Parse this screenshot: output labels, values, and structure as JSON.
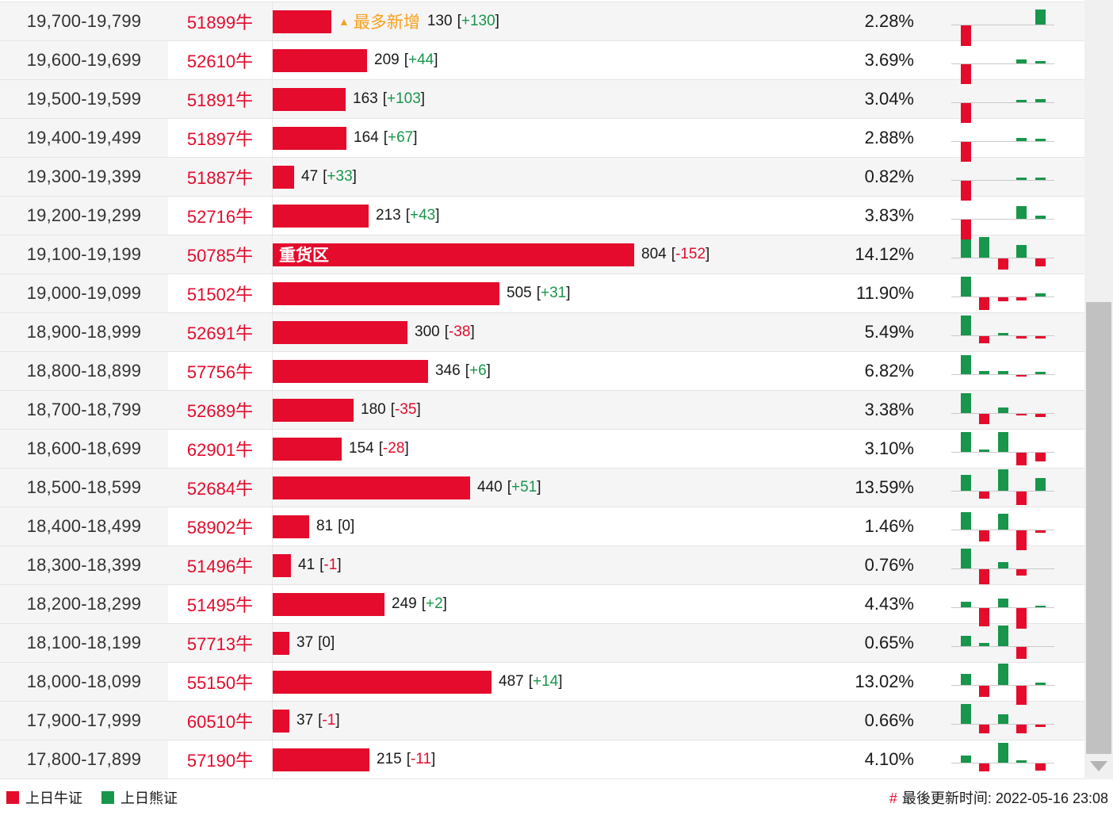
{
  "table": {
    "rows": [
      {
        "range": "19,700-19,799",
        "code": "51899牛",
        "value": 130,
        "delta": "+130",
        "pct": "2.28%",
        "tag": "最多新增",
        "tag_type": "most-new",
        "mini": [
          -26,
          0,
          0,
          0,
          19
        ]
      },
      {
        "range": "19,600-19,699",
        "code": "52610牛",
        "value": 209,
        "delta": "+44",
        "pct": "3.69%",
        "tag": "",
        "tag_type": "",
        "mini": [
          -25,
          0,
          0,
          5,
          3
        ]
      },
      {
        "range": "19,500-19,599",
        "code": "51891牛",
        "value": 163,
        "delta": "+103",
        "pct": "3.04%",
        "tag": "",
        "tag_type": "",
        "mini": [
          -25,
          0,
          0,
          3,
          4
        ]
      },
      {
        "range": "19,400-19,499",
        "code": "51897牛",
        "value": 164,
        "delta": "+67",
        "pct": "2.88%",
        "tag": "",
        "tag_type": "",
        "mini": [
          -25,
          0,
          0,
          4,
          3
        ]
      },
      {
        "range": "19,300-19,399",
        "code": "51887牛",
        "value": 47,
        "delta": "+33",
        "pct": "0.82%",
        "tag": "",
        "tag_type": "",
        "mini": [
          -25,
          0,
          0,
          3,
          3
        ]
      },
      {
        "range": "19,200-19,299",
        "code": "52716牛",
        "value": 213,
        "delta": "+43",
        "pct": "3.83%",
        "tag": "",
        "tag_type": "",
        "mini": [
          -25,
          0,
          0,
          16,
          4
        ]
      },
      {
        "range": "19,100-19,199",
        "code": "50785牛",
        "value": 804,
        "delta": "-152",
        "pct": "14.12%",
        "tag": "重货区",
        "tag_type": "heavy",
        "mini": [
          23,
          26,
          -14,
          16,
          -10
        ]
      },
      {
        "range": "19,000-19,099",
        "code": "51502牛",
        "value": 505,
        "delta": "+31",
        "pct": "11.90%",
        "tag": "",
        "tag_type": "",
        "mini": [
          25,
          -16,
          -5,
          -4,
          4
        ]
      },
      {
        "range": "18,900-18,999",
        "code": "52691牛",
        "value": 300,
        "delta": "-38",
        "pct": "5.49%",
        "tag": "",
        "tag_type": "",
        "mini": [
          25,
          -9,
          3,
          -3,
          -3
        ]
      },
      {
        "range": "18,800-18,899",
        "code": "57756牛",
        "value": 346,
        "delta": "+6",
        "pct": "6.82%",
        "tag": "",
        "tag_type": "",
        "mini": [
          24,
          4,
          4,
          -2,
          3
        ]
      },
      {
        "range": "18,700-18,799",
        "code": "52689牛",
        "value": 180,
        "delta": "-35",
        "pct": "3.38%",
        "tag": "",
        "tag_type": "",
        "mini": [
          25,
          -13,
          7,
          -2,
          -4
        ]
      },
      {
        "range": "18,600-18,699",
        "code": "62901牛",
        "value": 154,
        "delta": "-28",
        "pct": "3.10%",
        "tag": "",
        "tag_type": "",
        "mini": [
          25,
          3,
          25,
          -16,
          -11
        ]
      },
      {
        "range": "18,500-18,599",
        "code": "52684牛",
        "value": 440,
        "delta": "+51",
        "pct": "13.59%",
        "tag": "",
        "tag_type": "",
        "mini": [
          20,
          -9,
          27,
          -17,
          16
        ]
      },
      {
        "range": "18,400-18,499",
        "code": "58902牛",
        "value": 81,
        "delta": "0",
        "pct": "1.46%",
        "tag": "",
        "tag_type": "",
        "mini": [
          22,
          -14,
          20,
          -25,
          -3
        ]
      },
      {
        "range": "18,300-18,399",
        "code": "51496牛",
        "value": 41,
        "delta": "-1",
        "pct": "0.76%",
        "tag": "",
        "tag_type": "",
        "mini": [
          25,
          -19,
          8,
          -8,
          0
        ]
      },
      {
        "range": "18,200-18,299",
        "code": "51495牛",
        "value": 249,
        "delta": "+2",
        "pct": "4.43%",
        "tag": "",
        "tag_type": "",
        "mini": [
          7,
          -23,
          11,
          -26,
          2
        ]
      },
      {
        "range": "18,100-18,199",
        "code": "57713牛",
        "value": 37,
        "delta": "0",
        "pct": "0.65%",
        "tag": "",
        "tag_type": "",
        "mini": [
          13,
          4,
          26,
          -15,
          0
        ]
      },
      {
        "range": "18,000-18,099",
        "code": "55150牛",
        "value": 487,
        "delta": "+14",
        "pct": "13.02%",
        "tag": "",
        "tag_type": "",
        "mini": [
          14,
          -14,
          27,
          -24,
          3
        ]
      },
      {
        "range": "17,900-17,999",
        "code": "60510牛",
        "value": 37,
        "delta": "-1",
        "pct": "0.66%",
        "tag": "",
        "tag_type": "",
        "mini": [
          25,
          -11,
          12,
          -11,
          -3
        ]
      },
      {
        "range": "17,800-17,899",
        "code": "57190牛",
        "value": 215,
        "delta": "-11",
        "pct": "4.10%",
        "tag": "",
        "tag_type": "",
        "mini": [
          9,
          -10,
          25,
          3,
          -9
        ]
      }
    ]
  },
  "legend": {
    "bull": "上日牛证",
    "bear": "上日熊证"
  },
  "footer": {
    "hash": "#",
    "updated": "最後更新时间: 2022-05-16 23:08"
  },
  "colors": {
    "bull_red": "#e40b2c",
    "bear_green": "#18964b",
    "highlight_orange": "#f7a11c",
    "row_alt_bg": "#f5f5f6"
  }
}
